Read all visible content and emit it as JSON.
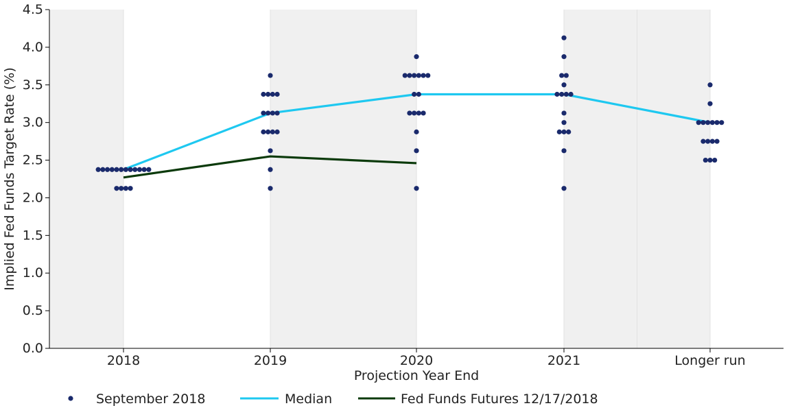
{
  "chart_data": {
    "type": "scatter",
    "xlabel": "Projection Year End",
    "ylabel": "Implied Fed Funds Target Rate (%)",
    "ylim": [
      0,
      4.5
    ],
    "categories": [
      "2018",
      "2019",
      "2020",
      "2021",
      "Longer run"
    ],
    "y_ticks": [
      "0.0",
      "0.5",
      "1.0",
      "1.5",
      "2.0",
      "2.5",
      "3.0",
      "3.5",
      "4.0",
      "4.5"
    ],
    "shading": "alternating gray bands",
    "legend_position": "bottom",
    "series": [
      {
        "name": "September 2018",
        "type": "dots",
        "color": "#1a2a6c",
        "groups": [
          {
            "category": "2018",
            "values": [
              {
                "y": 2.375,
                "count": 12
              },
              {
                "y": 2.125,
                "count": 4
              }
            ]
          },
          {
            "category": "2019",
            "values": [
              {
                "y": 3.625,
                "count": 1
              },
              {
                "y": 3.375,
                "count": 4
              },
              {
                "y": 3.125,
                "count": 4
              },
              {
                "y": 2.875,
                "count": 4
              },
              {
                "y": 2.625,
                "count": 1
              },
              {
                "y": 2.375,
                "count": 1
              },
              {
                "y": 2.125,
                "count": 1
              }
            ]
          },
          {
            "category": "2020",
            "values": [
              {
                "y": 3.875,
                "count": 1
              },
              {
                "y": 3.625,
                "count": 6
              },
              {
                "y": 3.375,
                "count": 2
              },
              {
                "y": 3.125,
                "count": 4
              },
              {
                "y": 2.875,
                "count": 1
              },
              {
                "y": 2.625,
                "count": 1
              },
              {
                "y": 2.125,
                "count": 1
              }
            ]
          },
          {
            "category": "2021",
            "values": [
              {
                "y": 4.125,
                "count": 1
              },
              {
                "y": 3.875,
                "count": 1
              },
              {
                "y": 3.625,
                "count": 2
              },
              {
                "y": 3.5,
                "count": 1
              },
              {
                "y": 3.375,
                "count": 4
              },
              {
                "y": 3.125,
                "count": 1
              },
              {
                "y": 3.0,
                "count": 1
              },
              {
                "y": 2.875,
                "count": 3
              },
              {
                "y": 2.625,
                "count": 1
              },
              {
                "y": 2.125,
                "count": 1
              }
            ]
          },
          {
            "category": "Longer run",
            "values": [
              {
                "y": 3.5,
                "count": 1
              },
              {
                "y": 3.25,
                "count": 1
              },
              {
                "y": 3.0,
                "count": 6
              },
              {
                "y": 2.75,
                "count": 4
              },
              {
                "y": 2.5,
                "count": 3
              }
            ]
          }
        ]
      },
      {
        "name": "Median",
        "type": "line",
        "color": "#1ec8f0",
        "points": [
          {
            "category": "2018",
            "y": 2.375
          },
          {
            "category": "2019",
            "y": 3.125
          },
          {
            "category": "2020",
            "y": 3.375
          },
          {
            "category": "2021",
            "y": 3.375
          },
          {
            "category": "Longer run",
            "y": 3.0
          }
        ]
      },
      {
        "name": "Fed Funds Futures 12/17/2018",
        "type": "line",
        "color": "#0b3a0b",
        "points": [
          {
            "category": "2018",
            "y": 2.27
          },
          {
            "category": "2019",
            "y": 2.55
          },
          {
            "category": "2020",
            "y": 2.46
          }
        ]
      }
    ]
  }
}
